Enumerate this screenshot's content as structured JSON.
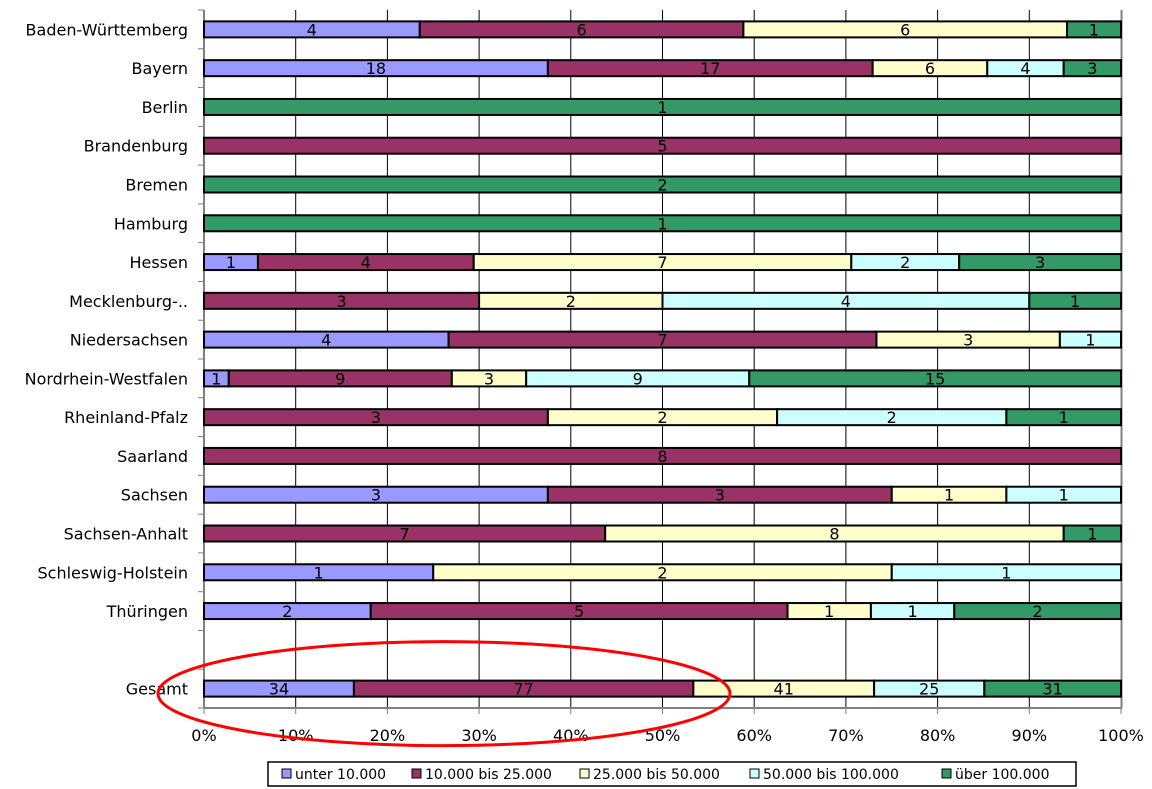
{
  "chart_data": {
    "type": "bar",
    "orientation": "horizontal",
    "stacked": "percent",
    "title": "",
    "xlabel": "",
    "ylabel": "",
    "xlim": [
      0,
      100
    ],
    "x_ticks": [
      "0%",
      "10%",
      "20%",
      "30%",
      "40%",
      "50%",
      "60%",
      "70%",
      "80%",
      "90%",
      "100%"
    ],
    "grid": "vertical",
    "legend_position": "bottom",
    "categories": [
      "Baden-Württemberg",
      "Bayern",
      "Berlin",
      "Brandenburg",
      "Bremen",
      "Hamburg",
      "Hessen",
      "Mecklenburg-..",
      "Niedersachsen",
      "Nordrhein-Westfalen",
      "Rheinland-Pfalz",
      "Saarland",
      "Sachsen",
      "Sachsen-Anhalt",
      "Schleswig-Holstein",
      "Thüringen",
      "",
      "Gesamt"
    ],
    "series": [
      {
        "name": "unter 10.000",
        "color": "#9999ff",
        "values": [
          4,
          18,
          0,
          0,
          0,
          0,
          1,
          0,
          4,
          1,
          0,
          0,
          3,
          0,
          1,
          2,
          0,
          34
        ]
      },
      {
        "name": "10.000 bis 25.000",
        "color": "#993366",
        "values": [
          6,
          17,
          0,
          5,
          0,
          0,
          4,
          3,
          7,
          9,
          3,
          8,
          3,
          7,
          0,
          5,
          0,
          77
        ]
      },
      {
        "name": "25.000 bis 50.000",
        "color": "#ffffcc",
        "values": [
          6,
          6,
          0,
          0,
          0,
          0,
          7,
          2,
          3,
          3,
          2,
          0,
          1,
          8,
          2,
          1,
          0,
          41
        ]
      },
      {
        "name": "50.000 bis 100.000",
        "color": "#ccffff",
        "values": [
          0,
          4,
          0,
          0,
          0,
          0,
          2,
          4,
          1,
          9,
          2,
          0,
          1,
          0,
          1,
          1,
          0,
          25
        ]
      },
      {
        "name": "über 100.000",
        "color": "#339966",
        "values": [
          1,
          3,
          1,
          0,
          2,
          1,
          3,
          1,
          0,
          15,
          1,
          0,
          0,
          1,
          0,
          2,
          0,
          31
        ]
      }
    ],
    "annotations": [
      {
        "type": "ellipse",
        "color": "#ff0000",
        "target": "Gesamt"
      }
    ]
  }
}
